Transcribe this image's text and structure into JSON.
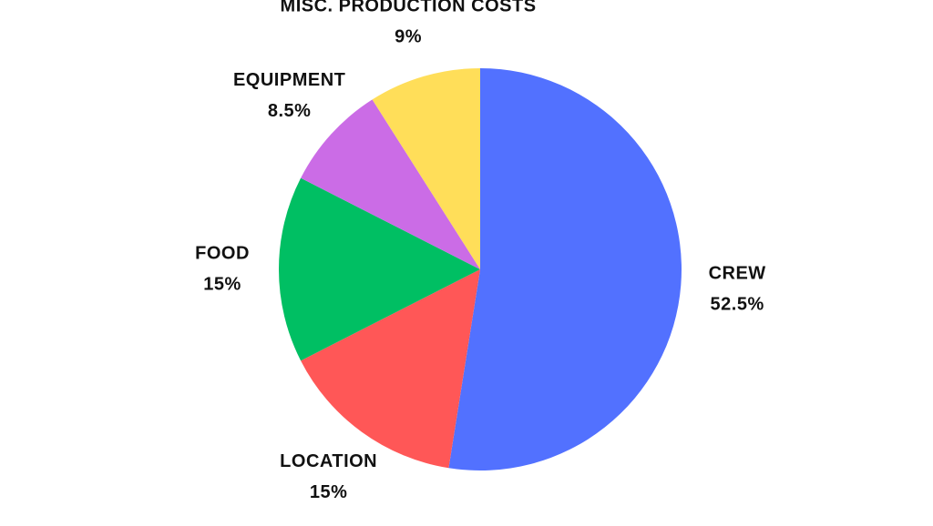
{
  "chart_data": {
    "type": "pie",
    "categories": [
      "CREW",
      "LOCATION",
      "FOOD",
      "EQUIPMENT",
      "MISC. PRODUCTION COSTS"
    ],
    "values": [
      52.5,
      15,
      15,
      8.5,
      9
    ],
    "value_labels": [
      "52.5%",
      "15%",
      "15%",
      "8.5%",
      "9%"
    ],
    "colors": [
      "#5271ff",
      "#ff5757",
      "#00bf63",
      "#cb6ce6",
      "#ffde59"
    ]
  }
}
